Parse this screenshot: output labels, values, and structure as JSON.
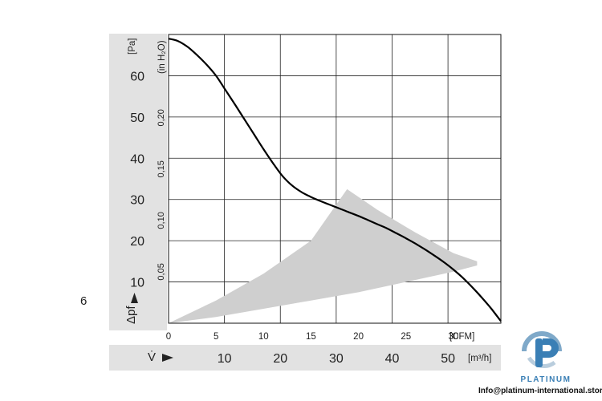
{
  "page_mark": "6",
  "chart_data": {
    "type": "line",
    "x_axis_primary": {
      "unit_label": "[CFM]",
      "ticks": [
        0,
        5,
        10,
        15,
        20,
        25,
        30
      ],
      "range": [
        0,
        35
      ]
    },
    "x_axis_secondary": {
      "symbol": "V̇",
      "unit_label": "[m³/h]",
      "ticks": [
        10,
        20,
        30,
        40,
        50
      ]
    },
    "y_axis_left": {
      "symbol": "Δpf",
      "unit_label": "[Pa]",
      "ticks": [
        10,
        20,
        30,
        40,
        50,
        60
      ],
      "range": [
        0,
        70
      ]
    },
    "y_axis_right": {
      "unit_label": "(in H₂O)",
      "ticks": [
        "0,05",
        "0,10",
        "0,15",
        "0,20"
      ]
    },
    "grid": true,
    "series": [
      {
        "x": [
          0,
          1,
          2,
          3,
          4,
          5,
          6,
          7,
          8,
          9,
          10,
          11,
          12,
          13,
          14,
          15,
          16,
          17,
          18,
          19,
          20,
          21,
          22,
          23,
          24,
          25,
          26,
          27,
          28,
          29,
          30,
          31,
          32,
          33,
          34,
          35
        ],
        "values": [
          69.0,
          68.4,
          67.0,
          65.0,
          62.7,
          60.0,
          56.5,
          53.0,
          49.4,
          45.8,
          42.2,
          38.8,
          35.7,
          33.4,
          31.8,
          30.6,
          29.6,
          28.7,
          27.8,
          26.9,
          26.0,
          25.0,
          24.0,
          23.0,
          21.8,
          20.6,
          19.3,
          17.9,
          16.4,
          14.8,
          13.0,
          11.0,
          8.7,
          6.2,
          3.5,
          0.5
        ],
        "color": "#000000"
      }
    ],
    "operating_region": {
      "upper": {
        "x": [
          0,
          5,
          10,
          15,
          18.8,
          22,
          26,
          30,
          32.5
        ],
        "values": [
          0,
          5.5,
          12,
          20,
          32.5,
          27.5,
          22,
          17,
          15
        ]
      },
      "lower": {
        "x": [
          0,
          5,
          10,
          15,
          20,
          25,
          30,
          32.5
        ],
        "values": [
          0,
          1.5,
          3.5,
          5.5,
          7.5,
          10,
          12.5,
          14
        ]
      },
      "color": "#cfcfcf"
    }
  },
  "brand": {
    "name": "PLATINUM",
    "email": "Info@platinum-international.store",
    "color": "#3a7fb5"
  }
}
